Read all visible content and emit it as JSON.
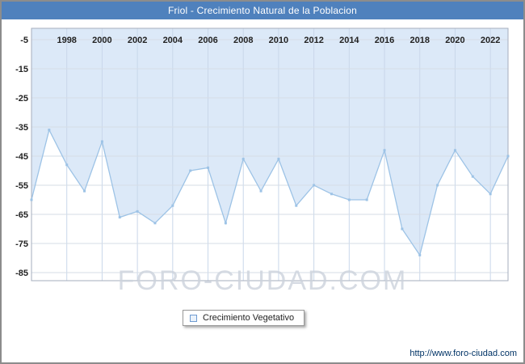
{
  "title": "Friol - Crecimiento Natural de la Poblacion",
  "legend": {
    "label": "Crecimiento Vegetativo"
  },
  "watermark": "FORO-CIUDAD.COM",
  "footer": {
    "url": "http://www.foro-ciudad.com"
  },
  "chart_data": {
    "type": "area",
    "title": "Friol - Crecimiento Natural de la Poblacion",
    "xlabel": "",
    "ylabel": "",
    "x": [
      1996,
      1997,
      1998,
      1999,
      2000,
      2001,
      2002,
      2003,
      2004,
      2005,
      2006,
      2007,
      2008,
      2009,
      2010,
      2011,
      2012,
      2013,
      2014,
      2015,
      2016,
      2017,
      2018,
      2019,
      2020,
      2021,
      2022,
      2023
    ],
    "series": [
      {
        "name": "Crecimiento Vegetativo",
        "values": [
          -60,
          -36,
          -48,
          -57,
          -40,
          -66,
          -64,
          -68,
          -62,
          -50,
          -49,
          -68,
          -46,
          -57,
          -46,
          -62,
          -55,
          -58,
          -60,
          -60,
          -43,
          -70,
          -79,
          -55,
          -43,
          -52,
          -58,
          -45
        ]
      }
    ],
    "ylim": [
      -85,
      -5
    ],
    "yticks": [
      -5,
      -15,
      -25,
      -35,
      -45,
      -55,
      -65,
      -75,
      -85
    ],
    "xticks": [
      1998,
      2000,
      2002,
      2004,
      2006,
      2008,
      2010,
      2012,
      2014,
      2016,
      2018,
      2020,
      2022
    ],
    "grid": true,
    "legend_position": "bottom",
    "colors": {
      "header": "#4f81bd",
      "line": "#9dc3e6",
      "fill": "#dce9f8",
      "vgrid": "#c9d7ea",
      "hgrid": "#d6dde6",
      "plot_border": "#a6aebc"
    }
  }
}
